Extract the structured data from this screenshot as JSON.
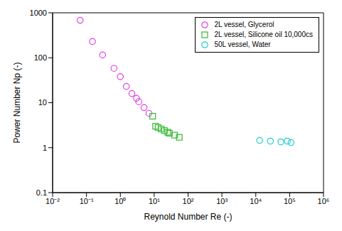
{
  "chart_data": {
    "type": "scatter",
    "x_label": "Reynold Number Re (-)",
    "y_label": "Power Number Np (-)",
    "log": true,
    "grid": false,
    "legend": "upper right",
    "xlim": [
      0.01,
      1000000
    ],
    "ylim": [
      0.1,
      1000
    ],
    "xticks": [
      {
        "value": 0.01,
        "label": "10⁻²"
      },
      {
        "value": 0.1,
        "label": "10⁻¹"
      },
      {
        "value": 1,
        "label": "10⁰"
      },
      {
        "value": 10,
        "label": "10¹"
      },
      {
        "value": 100,
        "label": "10²"
      },
      {
        "value": 1000,
        "label": "10³"
      },
      {
        "value": 10000,
        "label": "10⁴"
      },
      {
        "value": 100000,
        "label": "10⁵"
      },
      {
        "value": 1000000,
        "label": "10⁶"
      }
    ],
    "yticks": [
      0.1,
      1,
      10,
      100,
      1000
    ],
    "series": [
      {
        "name": "2L vessel, Glycerol",
        "color": "#e040e0",
        "marker": "circle",
        "x": [
          0.065,
          0.15,
          0.3,
          0.65,
          1.0,
          1.5,
          2.2,
          3.0,
          3.5,
          5.0,
          7.0
        ],
        "values": [
          680,
          230,
          115,
          58,
          38,
          23,
          16,
          12.5,
          10.5,
          7.8,
          5.8
        ]
      },
      {
        "name": "2L vessel, Silicone oil 10,000cs",
        "color": "#33bb33",
        "marker": "square",
        "x": [
          9,
          11,
          13,
          16,
          20,
          25,
          28,
          40,
          55
        ],
        "values": [
          5.0,
          3.0,
          2.8,
          2.6,
          2.4,
          2.2,
          2.1,
          1.9,
          1.7
        ]
      },
      {
        "name": "50L vessel, Water",
        "color": "#22cccc",
        "marker": "circle",
        "x": [
          13000,
          27000,
          55000,
          85000,
          110000
        ],
        "values": [
          1.45,
          1.4,
          1.35,
          1.4,
          1.3
        ]
      }
    ]
  }
}
